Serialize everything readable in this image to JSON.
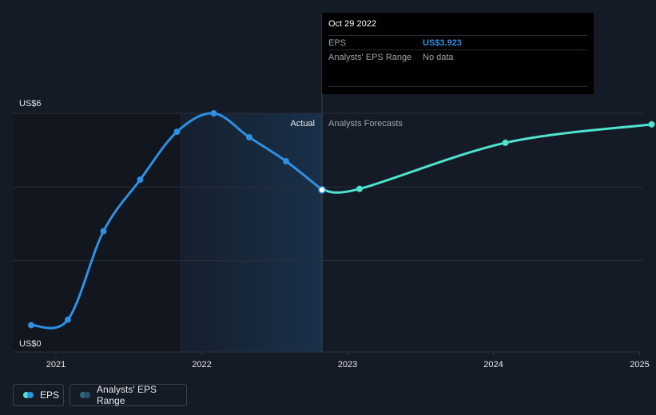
{
  "tooltip": {
    "date": "Oct 29 2022",
    "rows": [
      {
        "label": "EPS",
        "value": "US$3.923"
      },
      {
        "label": "Analysts' EPS Range",
        "value": "No data"
      }
    ]
  },
  "section_labels": {
    "actual": "Actual",
    "forecast": "Analysts Forecasts"
  },
  "legend": [
    {
      "label": "EPS",
      "colors": [
        "#2f8fe0",
        "#4ee3cf"
      ]
    },
    {
      "label": "Analysts' EPS Range",
      "colors": [
        "#2f8fe0",
        "#4ee3cf"
      ]
    }
  ],
  "colors": {
    "actual": "#2f8fe0",
    "forecast": "#4ee3cf",
    "background": "#151b26"
  },
  "chart_data": {
    "type": "line",
    "y_ticks": [
      {
        "value": 6,
        "label": "US$6"
      },
      {
        "value": 0,
        "label": "US$0"
      }
    ],
    "ylim": [
      0,
      6
    ],
    "x_ticks": [
      "2021",
      "2022",
      "2023",
      "2024",
      "2025"
    ],
    "xlim": [
      "2020-09-15",
      "2025-01-10"
    ],
    "highlight_date": "2022-10-29",
    "series": [
      {
        "name": "EPS",
        "kind": "actual",
        "points": [
          {
            "date": "2020-10-31",
            "value": 0.25
          },
          {
            "date": "2021-01-31",
            "value": 0.4
          },
          {
            "date": "2021-04-30",
            "value": 2.8
          },
          {
            "date": "2021-07-31",
            "value": 4.2
          },
          {
            "date": "2021-10-31",
            "value": 5.5
          },
          {
            "date": "2022-01-31",
            "value": 6.0
          },
          {
            "date": "2022-04-30",
            "value": 5.35
          },
          {
            "date": "2022-07-31",
            "value": 4.7
          },
          {
            "date": "2022-10-29",
            "value": 3.923
          }
        ]
      },
      {
        "name": "EPS",
        "kind": "forecast",
        "points": [
          {
            "date": "2022-10-29",
            "value": 3.923
          },
          {
            "date": "2023-01-31",
            "value": 3.95
          },
          {
            "date": "2024-01-31",
            "value": 5.2
          },
          {
            "date": "2025-01-31",
            "value": 5.7
          }
        ]
      }
    ]
  }
}
